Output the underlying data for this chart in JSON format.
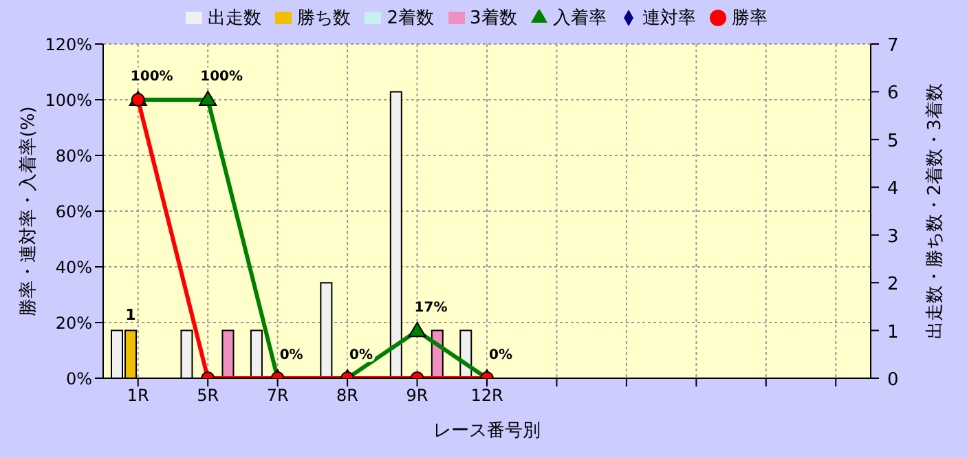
{
  "chart_data": {
    "type": "bar",
    "xlabel": "レース番号別",
    "ylabel": "勝率・連対率・入着率(%)",
    "y2label": "出走数・勝ち数・2着数・3着数",
    "categories": [
      "1R",
      "5R",
      "7R",
      "8R",
      "9R",
      "12R",
      null,
      null,
      null,
      null,
      null
    ],
    "series": [
      {
        "name": "出走数",
        "type": "bar",
        "axis": "y2",
        "color": "#f0f0f0",
        "values": [
          1,
          1,
          1,
          2,
          6,
          1,
          null,
          null,
          null,
          null,
          null
        ]
      },
      {
        "name": "勝ち数",
        "type": "bar",
        "axis": "y2",
        "color": "#f0c000",
        "values": [
          1,
          0,
          0,
          0,
          0,
          0,
          null,
          null,
          null,
          null,
          null
        ],
        "value_labels": [
          "1",
          null,
          null,
          null,
          null,
          null,
          null,
          null,
          null,
          null,
          null
        ]
      },
      {
        "name": "2着数",
        "type": "bar",
        "axis": "y2",
        "color": "#c8f0f0",
        "values": [
          0,
          0,
          0,
          0,
          0,
          0,
          null,
          null,
          null,
          null,
          null
        ]
      },
      {
        "name": "3着数",
        "type": "bar",
        "axis": "y2",
        "color": "#f090c0",
        "values": [
          0,
          1,
          0,
          0,
          1,
          0,
          null,
          null,
          null,
          null,
          null
        ]
      },
      {
        "name": "入着率",
        "type": "line",
        "axis": "y",
        "color": "#008000",
        "marker": "triangle",
        "values": [
          100,
          100,
          0,
          0,
          17,
          0,
          null,
          null,
          null,
          null,
          null
        ],
        "value_labels": [
          "100%",
          "100%",
          "0%",
          "0%",
          "17%",
          "0%",
          null,
          null,
          null,
          null,
          null
        ]
      },
      {
        "name": "連対率",
        "type": "line",
        "axis": "y",
        "color": "#000080",
        "marker": "diamond",
        "values": [
          null,
          null,
          null,
          null,
          null,
          null,
          null,
          null,
          null,
          null,
          null
        ]
      },
      {
        "name": "勝率",
        "type": "line",
        "axis": "y",
        "color": "#ff0000",
        "marker": "circle",
        "values": [
          100,
          0,
          0,
          0,
          0,
          0,
          null,
          null,
          null,
          null,
          null
        ]
      }
    ],
    "ylim": [
      0,
      120
    ],
    "yticks": [
      {
        "value": 0,
        "label": "0%"
      },
      {
        "value": 20,
        "label": "20%"
      },
      {
        "value": 40,
        "label": "40%"
      },
      {
        "value": 60,
        "label": "60%"
      },
      {
        "value": 80,
        "label": "80%"
      },
      {
        "value": 100,
        "label": "100%"
      },
      {
        "value": 120,
        "label": "120%"
      }
    ],
    "y2lim": [
      0,
      7
    ],
    "y2ticks": [
      0,
      1,
      2,
      3,
      4,
      5,
      6,
      7
    ],
    "grid": true,
    "legend": "top"
  }
}
